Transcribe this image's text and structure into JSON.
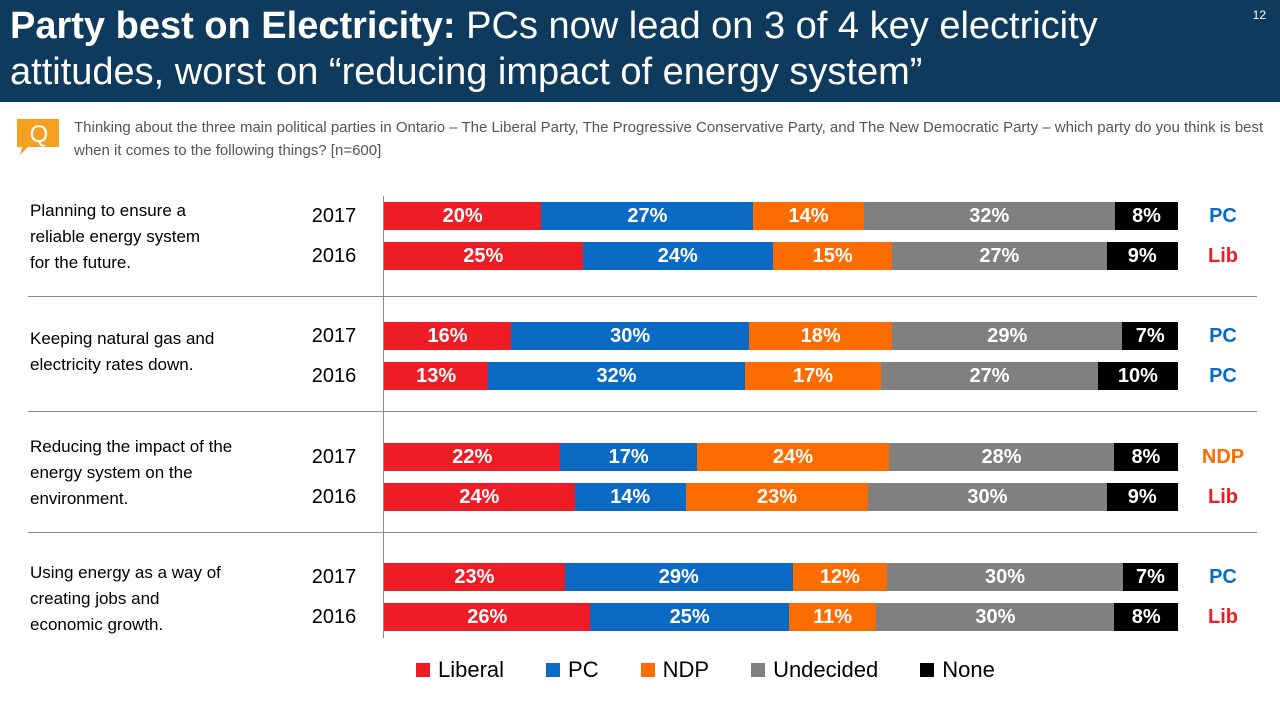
{
  "header": {
    "title_bold": "Party best on Electricity:",
    "title_rest": " PCs now lead on 3 of 4 key electricity attitudes, worst on “reducing impact of energy system”",
    "page_number": "12"
  },
  "question": {
    "icon_letter": "Q",
    "text": "Thinking about the three main political parties in Ontario – The Liberal Party, The Progressive Conservative Party, and The New Democratic Party – which party do you think is best when it comes to the following things? [n=600]"
  },
  "colors": {
    "Liberal": "#ee1c25",
    "PC": "#0b6ac3",
    "NDP": "#fd6c00",
    "Undecided": "#808080",
    "None": "#000000",
    "header_bg": "#0e3a5e",
    "icon_orange": "#f5a01e"
  },
  "chart_data": {
    "type": "bar",
    "orientation": "horizontal-stacked-100",
    "series_names": [
      "Liberal",
      "PC",
      "NDP",
      "Undecided",
      "None"
    ],
    "groups": [
      {
        "label": "Planning to ensure a reliable energy system for the future.",
        "label_lines": [
          "Planning to ensure  a",
          "reliable energy system",
          "for the future."
        ],
        "rows": [
          {
            "year": "2017",
            "values": [
              20,
              27,
              14,
              32,
              8
            ],
            "labels": [
              "20%",
              "27%",
              "14%",
              "32%",
              "8%"
            ],
            "winner": "PC",
            "winner_color": "#0b6ac3"
          },
          {
            "year": "2016",
            "values": [
              25,
              24,
              15,
              27,
              9
            ],
            "labels": [
              "25%",
              "24%",
              "15%",
              "27%",
              "9%"
            ],
            "winner": "Lib",
            "winner_color": "#ee1c25"
          }
        ]
      },
      {
        "label": "Keeping natural gas and electricity rates down.",
        "label_lines": [
          "Keeping natural gas and",
          "electricity rates down."
        ],
        "rows": [
          {
            "year": "2017",
            "values": [
              16,
              30,
              18,
              29,
              7
            ],
            "labels": [
              "16%",
              "30%",
              "18%",
              "29%",
              "7%"
            ],
            "winner": "PC",
            "winner_color": "#0b6ac3"
          },
          {
            "year": "2016",
            "values": [
              13,
              32,
              17,
              27,
              10
            ],
            "labels": [
              "13%",
              "32%",
              "17%",
              "27%",
              "10%"
            ],
            "winner": "PC",
            "winner_color": "#0b6ac3"
          }
        ]
      },
      {
        "label": "Reducing the impact of the energy system on the environment.",
        "label_lines": [
          "Reducing the impact of the",
          "energy system on the",
          "environment."
        ],
        "rows": [
          {
            "year": "2017",
            "values": [
              22,
              17,
              24,
              28,
              8
            ],
            "labels": [
              "22%",
              "17%",
              "24%",
              "28%",
              "8%"
            ],
            "winner": "NDP",
            "winner_color": "#fd6c00"
          },
          {
            "year": "2016",
            "values": [
              24,
              14,
              23,
              30,
              9
            ],
            "labels": [
              "24%",
              "14%",
              "23%",
              "30%",
              "9%"
            ],
            "winner": "Lib",
            "winner_color": "#ee1c25"
          }
        ]
      },
      {
        "label": "Using energy as a way of creating jobs and economic growth.",
        "label_lines": [
          "Using energy as a way of",
          "creating jobs and",
          "economic growth."
        ],
        "rows": [
          {
            "year": "2017",
            "values": [
              23,
              29,
              12,
              30,
              7
            ],
            "labels": [
              "23%",
              "29%",
              "12%",
              "30%",
              "7%"
            ],
            "winner": "PC",
            "winner_color": "#0b6ac3"
          },
          {
            "year": "2016",
            "values": [
              26,
              25,
              11,
              30,
              8
            ],
            "labels": [
              "26%",
              "25%",
              "11%",
              "30%",
              "8%"
            ],
            "winner": "Lib",
            "winner_color": "#ee1c25"
          }
        ]
      }
    ],
    "legend": [
      "Liberal",
      "PC",
      "NDP",
      "Undecided",
      "None"
    ],
    "legend_position": "bottom"
  }
}
